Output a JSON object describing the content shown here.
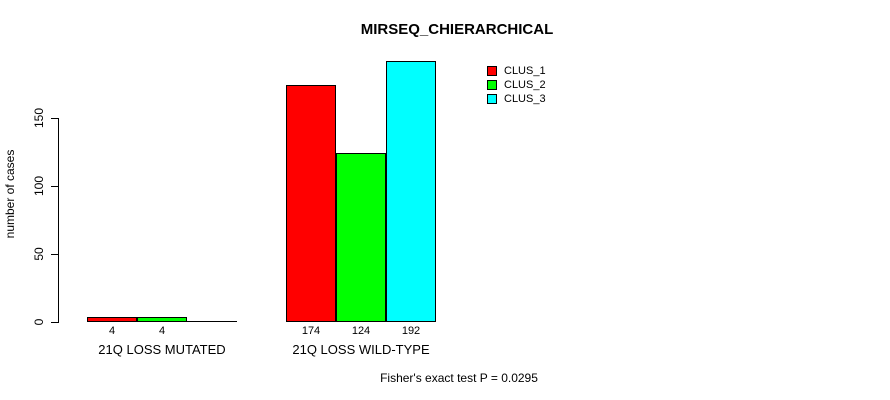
{
  "chart": {
    "title": "MIRSEQ_CHIERARCHICAL",
    "ylabel": "number of cases",
    "footer": "Fisher's exact test P = 0.0295"
  },
  "chart_data": {
    "type": "bar",
    "title": "MIRSEQ_CHIERARCHICAL",
    "xlabel": "",
    "ylabel": "number of cases",
    "categories": [
      "21Q LOSS MUTATED",
      "21Q LOSS WILD-TYPE"
    ],
    "series": [
      {
        "name": "CLUS_1",
        "color": "#ff0000",
        "values": [
          4,
          174
        ]
      },
      {
        "name": "CLUS_2",
        "color": "#00ff00",
        "values": [
          4,
          124
        ]
      },
      {
        "name": "CLUS_3",
        "color": "#00ffff",
        "values": [
          0,
          192
        ]
      }
    ],
    "visible_bar_value_labels": [
      "4",
      "4",
      "174",
      "124",
      "192"
    ],
    "yticks": [
      "0",
      "50",
      "100",
      "150"
    ],
    "ylim": [
      0,
      200
    ],
    "grid": false,
    "legend": {
      "position": "top-right",
      "entries": [
        "CLUS_1",
        "CLUS_2",
        "CLUS_3"
      ]
    },
    "annotation": "Fisher's exact test P = 0.0295",
    "colors": {
      "axis": "#000000",
      "background": "#ffffff"
    }
  }
}
